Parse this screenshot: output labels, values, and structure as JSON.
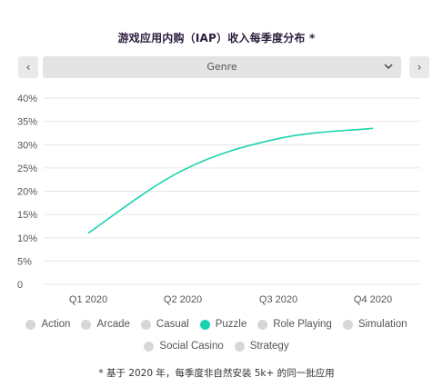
{
  "title": "游戏应用内购（IAP）收入每季度分布 *",
  "selector": {
    "value": "Genre"
  },
  "nav": {
    "prev": "‹",
    "next": "›"
  },
  "icons": {
    "dropdown": "chevron-down-icon"
  },
  "colors": {
    "line": "#19d3b0",
    "inactive_dot": "#d7d7d7",
    "grid": "#e6e6e6"
  },
  "legend": [
    {
      "label": "Action",
      "active": false
    },
    {
      "label": "Arcade",
      "active": false
    },
    {
      "label": "Casual",
      "active": false
    },
    {
      "label": "Puzzle",
      "active": true
    },
    {
      "label": "Role Playing",
      "active": false
    },
    {
      "label": "Simulation",
      "active": false
    },
    {
      "label": "Social Casino",
      "active": false
    },
    {
      "label": "Strategy",
      "active": false
    }
  ],
  "footnote": "* 基于 2020 年，每季度非自然安装 5k+ 的同一批应用",
  "chart_data": {
    "type": "line",
    "categories": [
      "Q1 2020",
      "Q2 2020",
      "Q3 2020",
      "Q4 2020"
    ],
    "y_ticks": [
      "40%",
      "35%",
      "30%",
      "25%",
      "20%",
      "15%",
      "10%",
      "5%",
      "0"
    ],
    "ylim": [
      0,
      40
    ],
    "series": [
      {
        "name": "Puzzle",
        "values": [
          11,
          24.5,
          31.3,
          33.5
        ]
      }
    ],
    "grid": true,
    "legend_position": "bottom"
  }
}
